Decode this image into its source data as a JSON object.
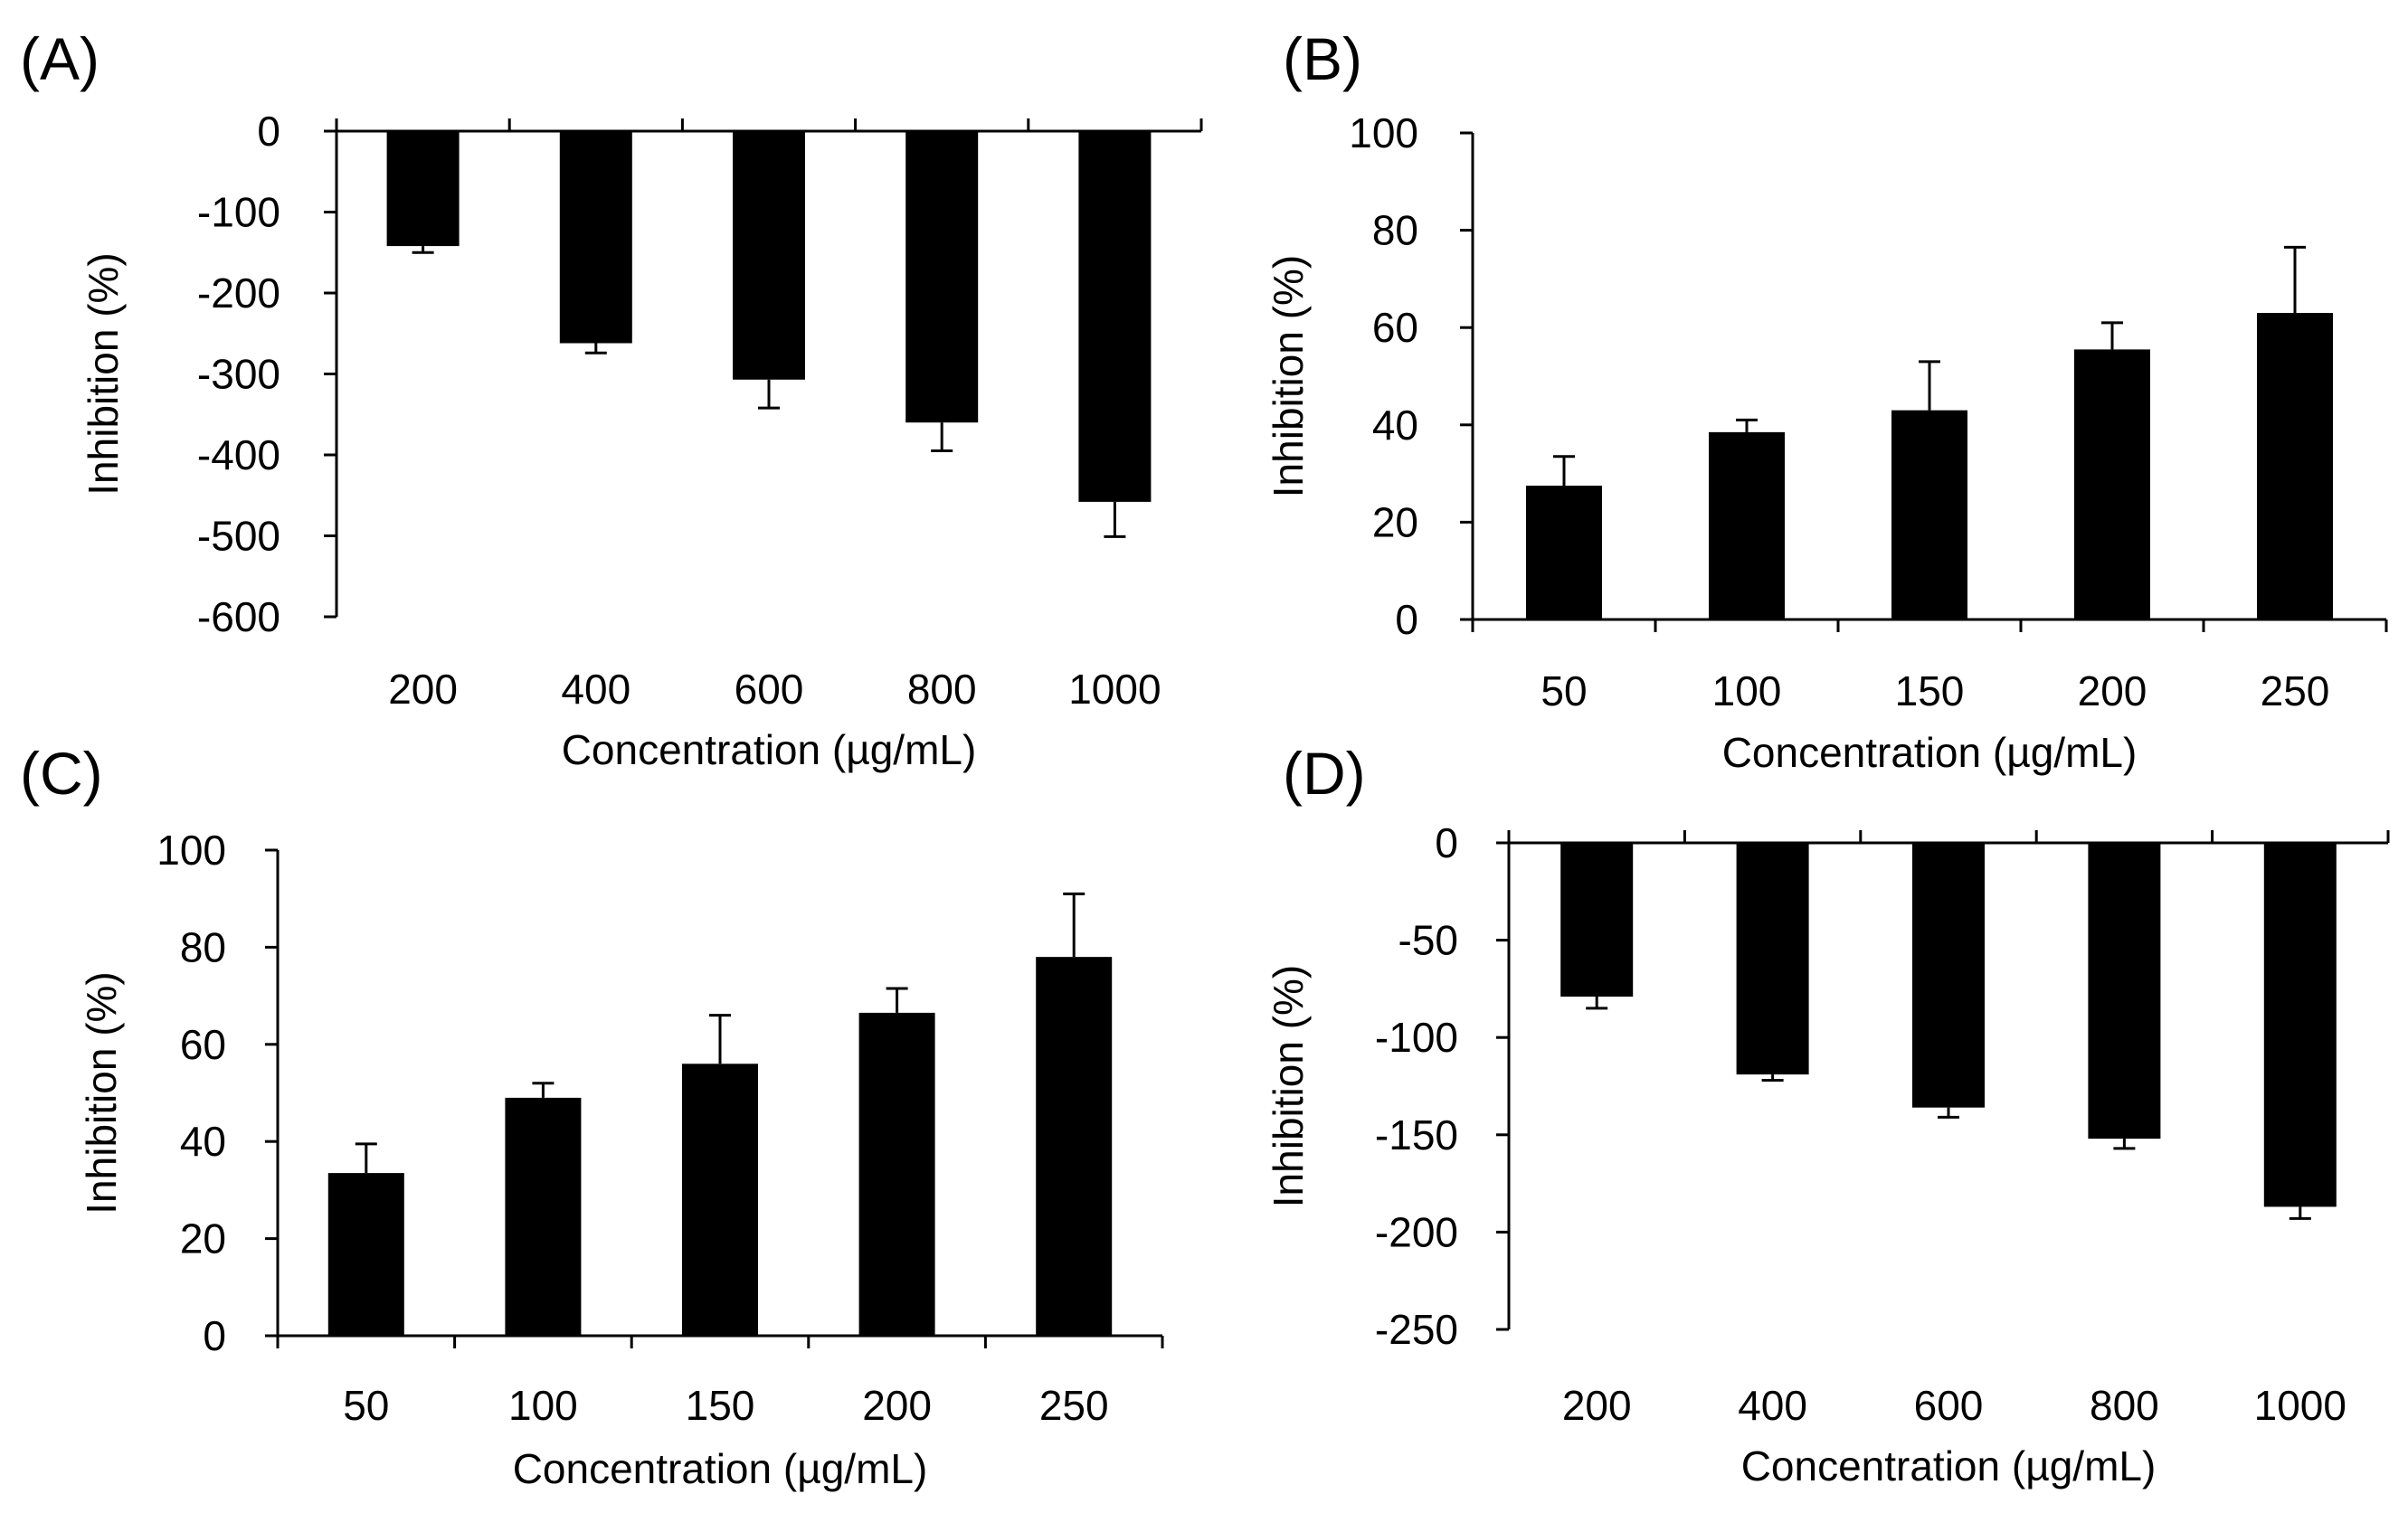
{
  "chart_data": [
    {
      "panel": "(A)",
      "type": "bar",
      "categories": [
        "200",
        "400",
        "600",
        "800",
        "1000"
      ],
      "values": [
        -142,
        -262,
        -307,
        -360,
        -458
      ],
      "errors": [
        8,
        12,
        35,
        35,
        43
      ],
      "xlabel": "Concentration (µg/mL)",
      "ylabel": "Inhibition (%)",
      "ylim": [
        -600,
        0
      ],
      "yticks": [
        "0",
        "-100",
        "-200",
        "-300",
        "-400",
        "-500",
        "-600"
      ],
      "ytick_values": [
        0,
        -100,
        -200,
        -300,
        -400,
        -500,
        -600
      ],
      "grid": false
    },
    {
      "panel": "(B)",
      "type": "bar",
      "categories": [
        "50",
        "100",
        "150",
        "200",
        "250"
      ],
      "values": [
        27.5,
        38.5,
        43,
        55.5,
        63
      ],
      "errors": [
        6,
        2.5,
        10,
        5.5,
        13.5
      ],
      "xlabel": "Concentration (µg/mL)",
      "ylabel": "Inhibition (%)",
      "ylim": [
        0,
        100
      ],
      "yticks": [
        "100",
        "80",
        "60",
        "40",
        "20",
        "0"
      ],
      "ytick_values": [
        100,
        80,
        60,
        40,
        20,
        0
      ],
      "grid": false
    },
    {
      "panel": "(C)",
      "type": "bar",
      "categories": [
        "50",
        "100",
        "150",
        "200",
        "250"
      ],
      "values": [
        33.5,
        49,
        56,
        66.5,
        78
      ],
      "errors": [
        6,
        3,
        10,
        5,
        13
      ],
      "xlabel": "Concentration (µg/mL)",
      "ylabel": "Inhibition (%)",
      "ylim": [
        0,
        100
      ],
      "yticks": [
        "100",
        "80",
        "60",
        "40",
        "20",
        "0"
      ],
      "ytick_values": [
        100,
        80,
        60,
        40,
        20,
        0
      ],
      "grid": false
    },
    {
      "panel": "(D)",
      "type": "bar",
      "categories": [
        "200",
        "400",
        "600",
        "800",
        "1000"
      ],
      "values": [
        -79,
        -119,
        -136,
        -152,
        -187
      ],
      "errors": [
        6,
        3,
        5,
        5,
        6
      ],
      "xlabel": "Concentration (µg/mL)",
      "ylabel": "Inhibition (%)",
      "ylim": [
        -250,
        0
      ],
      "yticks": [
        "0",
        "-50",
        "-100",
        "-150",
        "-200",
        "-250"
      ],
      "ytick_values": [
        0,
        -50,
        -100,
        -150,
        -200,
        -250
      ],
      "grid": false
    }
  ],
  "colors": {
    "bar": "#000000",
    "axis": "#000000",
    "background": "#ffffff"
  }
}
